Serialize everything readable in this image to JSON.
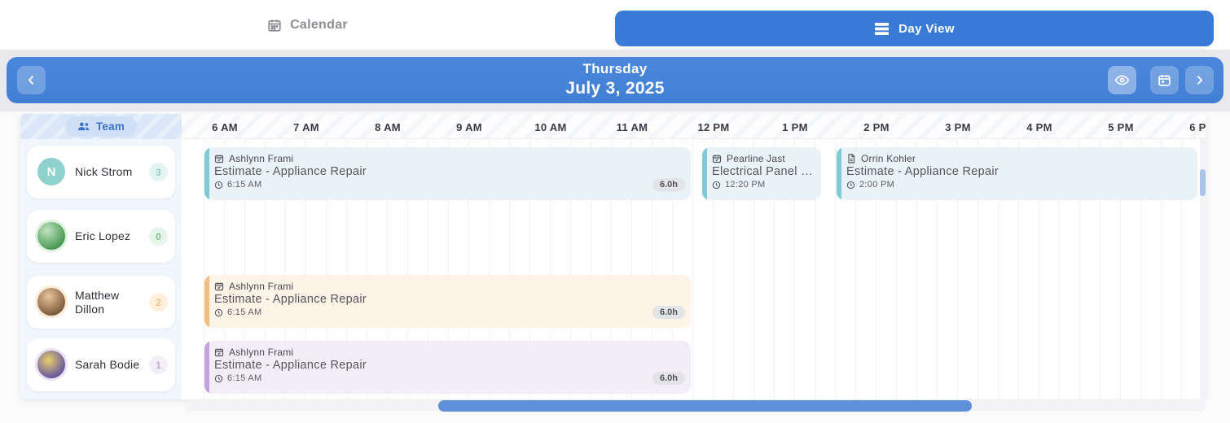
{
  "topbar": {
    "calendar_tab": "Calendar",
    "day_view_label": "Day View"
  },
  "header": {
    "weekday": "Thursday",
    "date": "July 3, 2025"
  },
  "team": {
    "label": "Team",
    "members": [
      {
        "name": "Nick Strom",
        "avatar_initial": "N",
        "badge": "3"
      },
      {
        "name": "Eric Lopez",
        "avatar_initial": "",
        "badge": "0"
      },
      {
        "name": "Matthew Dillon",
        "avatar_initial": "",
        "badge": "2"
      },
      {
        "name": "Sarah Bodie",
        "avatar_initial": "",
        "badge": "1"
      }
    ]
  },
  "timeline": {
    "hours": [
      "6 AM",
      "7 AM",
      "8 AM",
      "9 AM",
      "10 AM",
      "11 AM",
      "12 PM",
      "1 PM",
      "2 PM",
      "3 PM",
      "4 PM",
      "5 PM",
      "6 PM"
    ]
  },
  "events": [
    {
      "contact": "Ashlynn Frami",
      "title": "Estimate - Appliance Repair",
      "time": "6:15 AM",
      "duration": "6.0h",
      "color": "#7fc9d9"
    },
    {
      "contact": "Pearline Jast",
      "title": "Electrical Panel U...",
      "time": "12:20 PM",
      "duration": "",
      "color": "#7fc9d9"
    },
    {
      "contact": "Orrin Kohler",
      "title": "Estimate - Appliance Repair",
      "time": "2:00 PM",
      "duration": "",
      "color": "#7fc9d9"
    },
    {
      "contact": "Ashlynn Frami",
      "title": "Estimate - Appliance Repair",
      "time": "6:15 AM",
      "duration": "6.0h",
      "color": "#f3bd7e"
    },
    {
      "contact": "Ashlynn Frami",
      "title": "Estimate - Appliance Repair",
      "time": "6:15 AM",
      "duration": "6.0h",
      "color": "#c5a3da"
    }
  ],
  "colors": {
    "accent_blue": "#3b7bd8",
    "header_blue": "#4584d8",
    "event_blue_border": "#7fc9d9",
    "event_orange_border": "#f3bd7e",
    "event_purple_border": "#c5a3da"
  }
}
